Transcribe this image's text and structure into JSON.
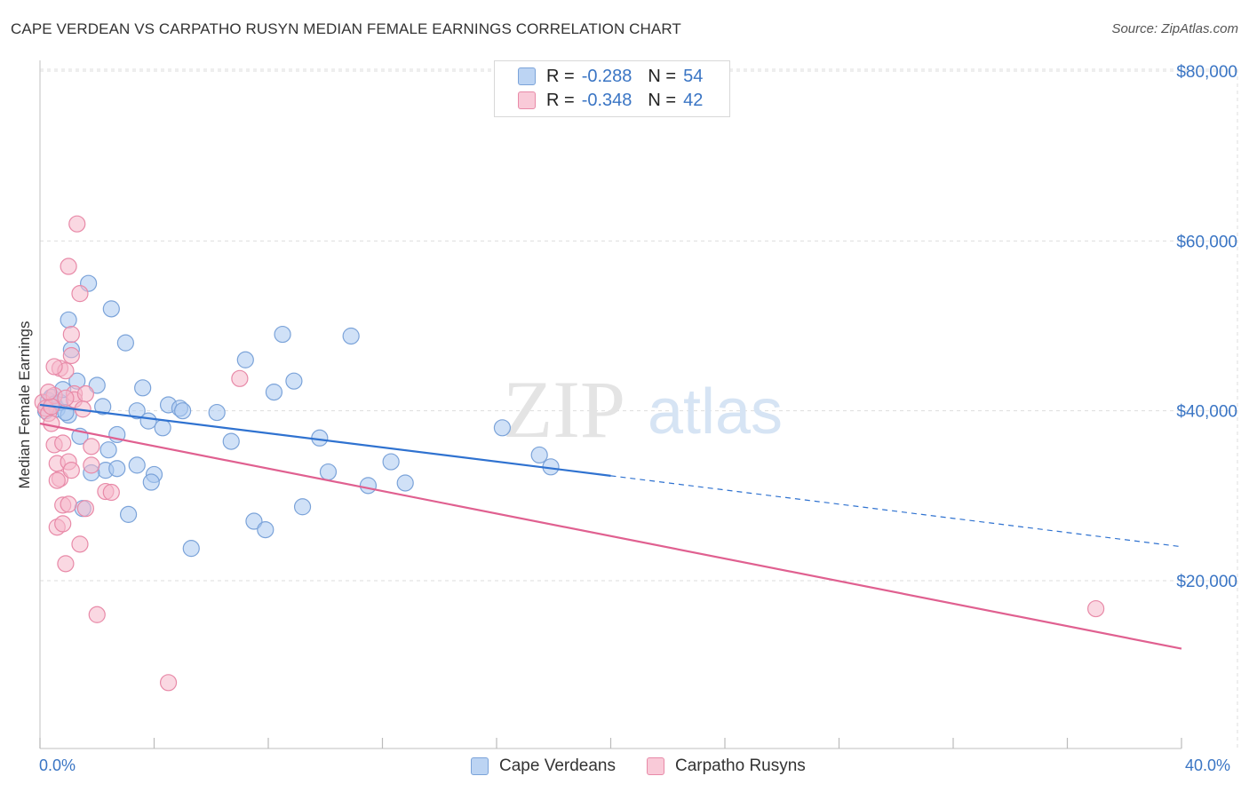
{
  "title": "CAPE VERDEAN VS CARPATHO RUSYN MEDIAN FEMALE EARNINGS CORRELATION CHART",
  "source": "Source: ZipAtlas.com",
  "watermark": {
    "zip": "ZIP",
    "atlas": "atlas"
  },
  "legend": {
    "rows": [
      {
        "r_label": "R =",
        "r_value": "-0.288",
        "n_label": "N =",
        "n_value": "54"
      },
      {
        "r_label": "R =",
        "r_value": "-0.348",
        "n_label": "N =",
        "n_value": "42"
      }
    ]
  },
  "bottom_legend": [
    "Cape Verdeans",
    "Carpatho Rusyns"
  ],
  "colors": {
    "blue_fill": "#a9c8f0",
    "blue_stroke": "#7ba3d9",
    "blue_line": "#2f72d0",
    "pink_fill": "#f6b8cb",
    "pink_stroke": "#e88aa8",
    "pink_line": "#e06090",
    "axis_text": "#3a75c4",
    "grid": "#dddddd"
  },
  "chart_data": {
    "type": "scatter",
    "title": "CAPE VERDEAN VS CARPATHO RUSYN MEDIAN FEMALE EARNINGS CORRELATION CHART",
    "xlabel": "",
    "ylabel": "Median Female Earnings",
    "x_tick_labels": [
      "0.0%",
      "40.0%"
    ],
    "y_tick_labels": [
      "$20,000",
      "$40,000",
      "$60,000",
      "$80,000"
    ],
    "y_ticks": [
      20000,
      40000,
      60000,
      80000
    ],
    "xlim": [
      0,
      40
    ],
    "ylim": [
      0,
      82000
    ],
    "grid": true,
    "series": [
      {
        "name": "Cape Verdeans",
        "points": [
          [
            0.2,
            40000
          ],
          [
            0.3,
            41200
          ],
          [
            0.4,
            41600
          ],
          [
            0.5,
            40800
          ],
          [
            0.6,
            40200
          ],
          [
            0.7,
            41000
          ],
          [
            0.8,
            42500
          ],
          [
            1.0,
            50700
          ],
          [
            1.0,
            39500
          ],
          [
            1.1,
            47200
          ],
          [
            1.3,
            43500
          ],
          [
            1.4,
            37000
          ],
          [
            1.5,
            28500
          ],
          [
            1.7,
            55000
          ],
          [
            2.0,
            43000
          ],
          [
            2.2,
            40500
          ],
          [
            2.3,
            33000
          ],
          [
            2.5,
            52000
          ],
          [
            2.7,
            37200
          ],
          [
            2.7,
            33200
          ],
          [
            3.0,
            48000
          ],
          [
            3.1,
            27800
          ],
          [
            3.4,
            40000
          ],
          [
            3.4,
            33600
          ],
          [
            3.6,
            42700
          ],
          [
            3.8,
            38800
          ],
          [
            4.0,
            32500
          ],
          [
            4.3,
            38000
          ],
          [
            4.5,
            40700
          ],
          [
            4.9,
            40300
          ],
          [
            5.0,
            40000
          ],
          [
            5.3,
            23800
          ],
          [
            6.2,
            39800
          ],
          [
            6.7,
            36400
          ],
          [
            7.2,
            46000
          ],
          [
            7.5,
            27000
          ],
          [
            7.9,
            26000
          ],
          [
            8.2,
            42200
          ],
          [
            8.5,
            49000
          ],
          [
            8.9,
            43500
          ],
          [
            9.2,
            28700
          ],
          [
            9.8,
            36800
          ],
          [
            10.1,
            32800
          ],
          [
            10.9,
            48800
          ],
          [
            11.5,
            31200
          ],
          [
            12.3,
            34000
          ],
          [
            12.8,
            31500
          ],
          [
            16.2,
            38000
          ],
          [
            17.5,
            34800
          ],
          [
            17.9,
            33400
          ],
          [
            1.8,
            32700
          ],
          [
            3.9,
            31600
          ],
          [
            0.9,
            39800
          ],
          [
            2.4,
            35400
          ]
        ]
      },
      {
        "name": "Carpatho Rusyns",
        "points": [
          [
            0.1,
            41000
          ],
          [
            0.2,
            40300
          ],
          [
            0.3,
            39700
          ],
          [
            0.4,
            38500
          ],
          [
            0.5,
            41800
          ],
          [
            0.5,
            36000
          ],
          [
            0.6,
            33800
          ],
          [
            0.6,
            26300
          ],
          [
            0.7,
            45000
          ],
          [
            0.7,
            32000
          ],
          [
            0.8,
            28900
          ],
          [
            0.8,
            26700
          ],
          [
            0.9,
            44700
          ],
          [
            0.9,
            22000
          ],
          [
            1.0,
            57000
          ],
          [
            1.0,
            34000
          ],
          [
            1.0,
            29000
          ],
          [
            1.1,
            46500
          ],
          [
            1.1,
            49000
          ],
          [
            1.2,
            42000
          ],
          [
            1.2,
            41300
          ],
          [
            1.3,
            62000
          ],
          [
            1.4,
            53800
          ],
          [
            1.4,
            24300
          ],
          [
            1.6,
            42000
          ],
          [
            1.6,
            28500
          ],
          [
            1.8,
            35800
          ],
          [
            1.8,
            33600
          ],
          [
            2.0,
            16000
          ],
          [
            2.3,
            30500
          ],
          [
            2.5,
            30400
          ],
          [
            4.5,
            8000
          ],
          [
            7.0,
            43800
          ],
          [
            37.0,
            16700
          ],
          [
            0.4,
            40500
          ],
          [
            0.6,
            31800
          ],
          [
            0.9,
            41500
          ],
          [
            1.5,
            40200
          ],
          [
            0.3,
            42200
          ],
          [
            0.8,
            36200
          ],
          [
            1.1,
            33000
          ],
          [
            0.5,
            45200
          ]
        ]
      }
    ],
    "trendlines": [
      {
        "series": "Cape Verdeans",
        "x": [
          0,
          40
        ],
        "y": [
          40700,
          24000
        ],
        "solid_until_x": 20
      },
      {
        "series": "Carpatho Rusyns",
        "x": [
          0,
          40
        ],
        "y": [
          38500,
          12000
        ]
      }
    ]
  }
}
